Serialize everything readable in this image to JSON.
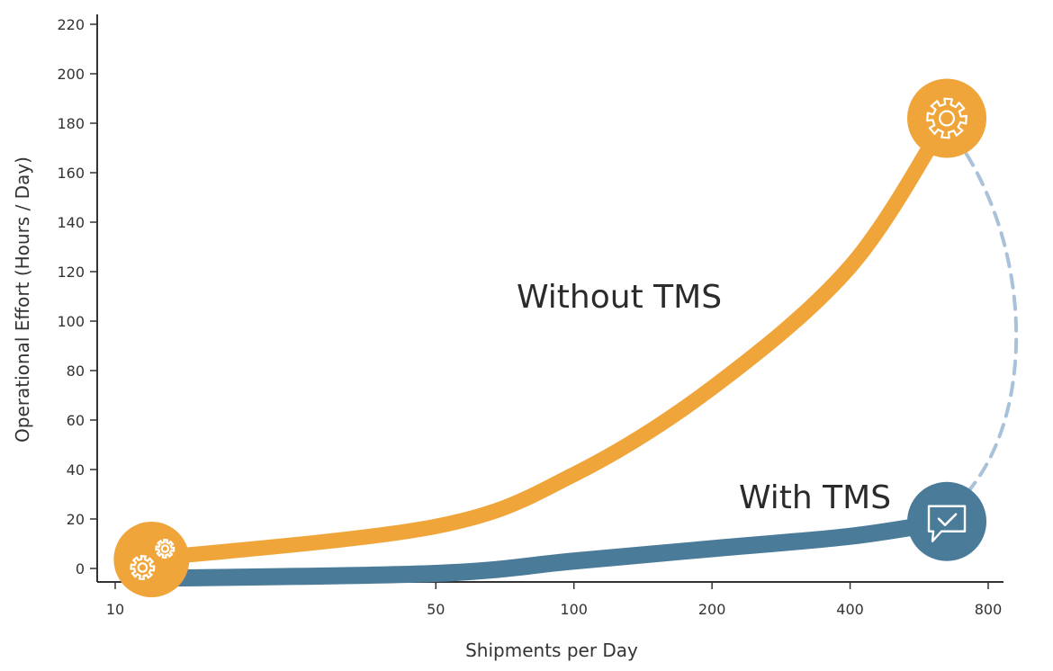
{
  "chart_data": {
    "type": "line",
    "xlabel": "Shipments per Day",
    "ylabel": "Operational Effort (Hours / Day)",
    "x_scale": "log2",
    "x_ticks": [
      10,
      50,
      100,
      200,
      400,
      800
    ],
    "y_ticks": [
      0,
      20,
      40,
      60,
      80,
      100,
      120,
      140,
      160,
      180,
      200,
      220
    ],
    "ylim": [
      -5,
      225
    ],
    "grid": false,
    "legend": "none",
    "series": [
      {
        "name": "Without TMS",
        "color": "#f0a53a",
        "x": [
          12,
          50,
          100,
          200,
          400,
          650
        ],
        "y": [
          4,
          17,
          38,
          73,
          122,
          182
        ],
        "end_icon": "gear-icon",
        "start_icon": "gears-icon"
      },
      {
        "name": "With TMS",
        "color": "#4a7c9a",
        "x": [
          12,
          50,
          100,
          200,
          400,
          650
        ],
        "y": [
          -4,
          -2,
          3,
          8,
          13,
          19
        ],
        "end_icon": "chat-check-icon"
      }
    ],
    "connector": {
      "from": "Without TMS",
      "to": "With TMS",
      "style": "dashed",
      "color": "#a9c1d9"
    }
  }
}
